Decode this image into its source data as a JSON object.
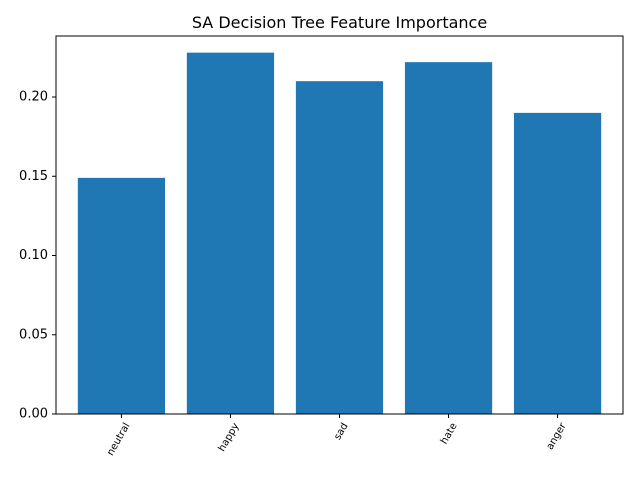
{
  "chart_data": {
    "type": "bar",
    "title": "SA Decision Tree Feature Importance",
    "xlabel": "",
    "ylabel": "",
    "categories": [
      "neutral",
      "happy",
      "sad",
      "hate",
      "anger"
    ],
    "values": [
      0.149,
      0.228,
      0.21,
      0.222,
      0.19
    ],
    "ylim": [
      0,
      0.2385
    ],
    "yticks": [
      0.0,
      0.05,
      0.1,
      0.15,
      0.2
    ],
    "ytick_labels": [
      "0.00",
      "0.05",
      "0.10",
      "0.15",
      "0.20"
    ],
    "bar_color": "#1f77b4",
    "grid": false,
    "legend": "none"
  }
}
